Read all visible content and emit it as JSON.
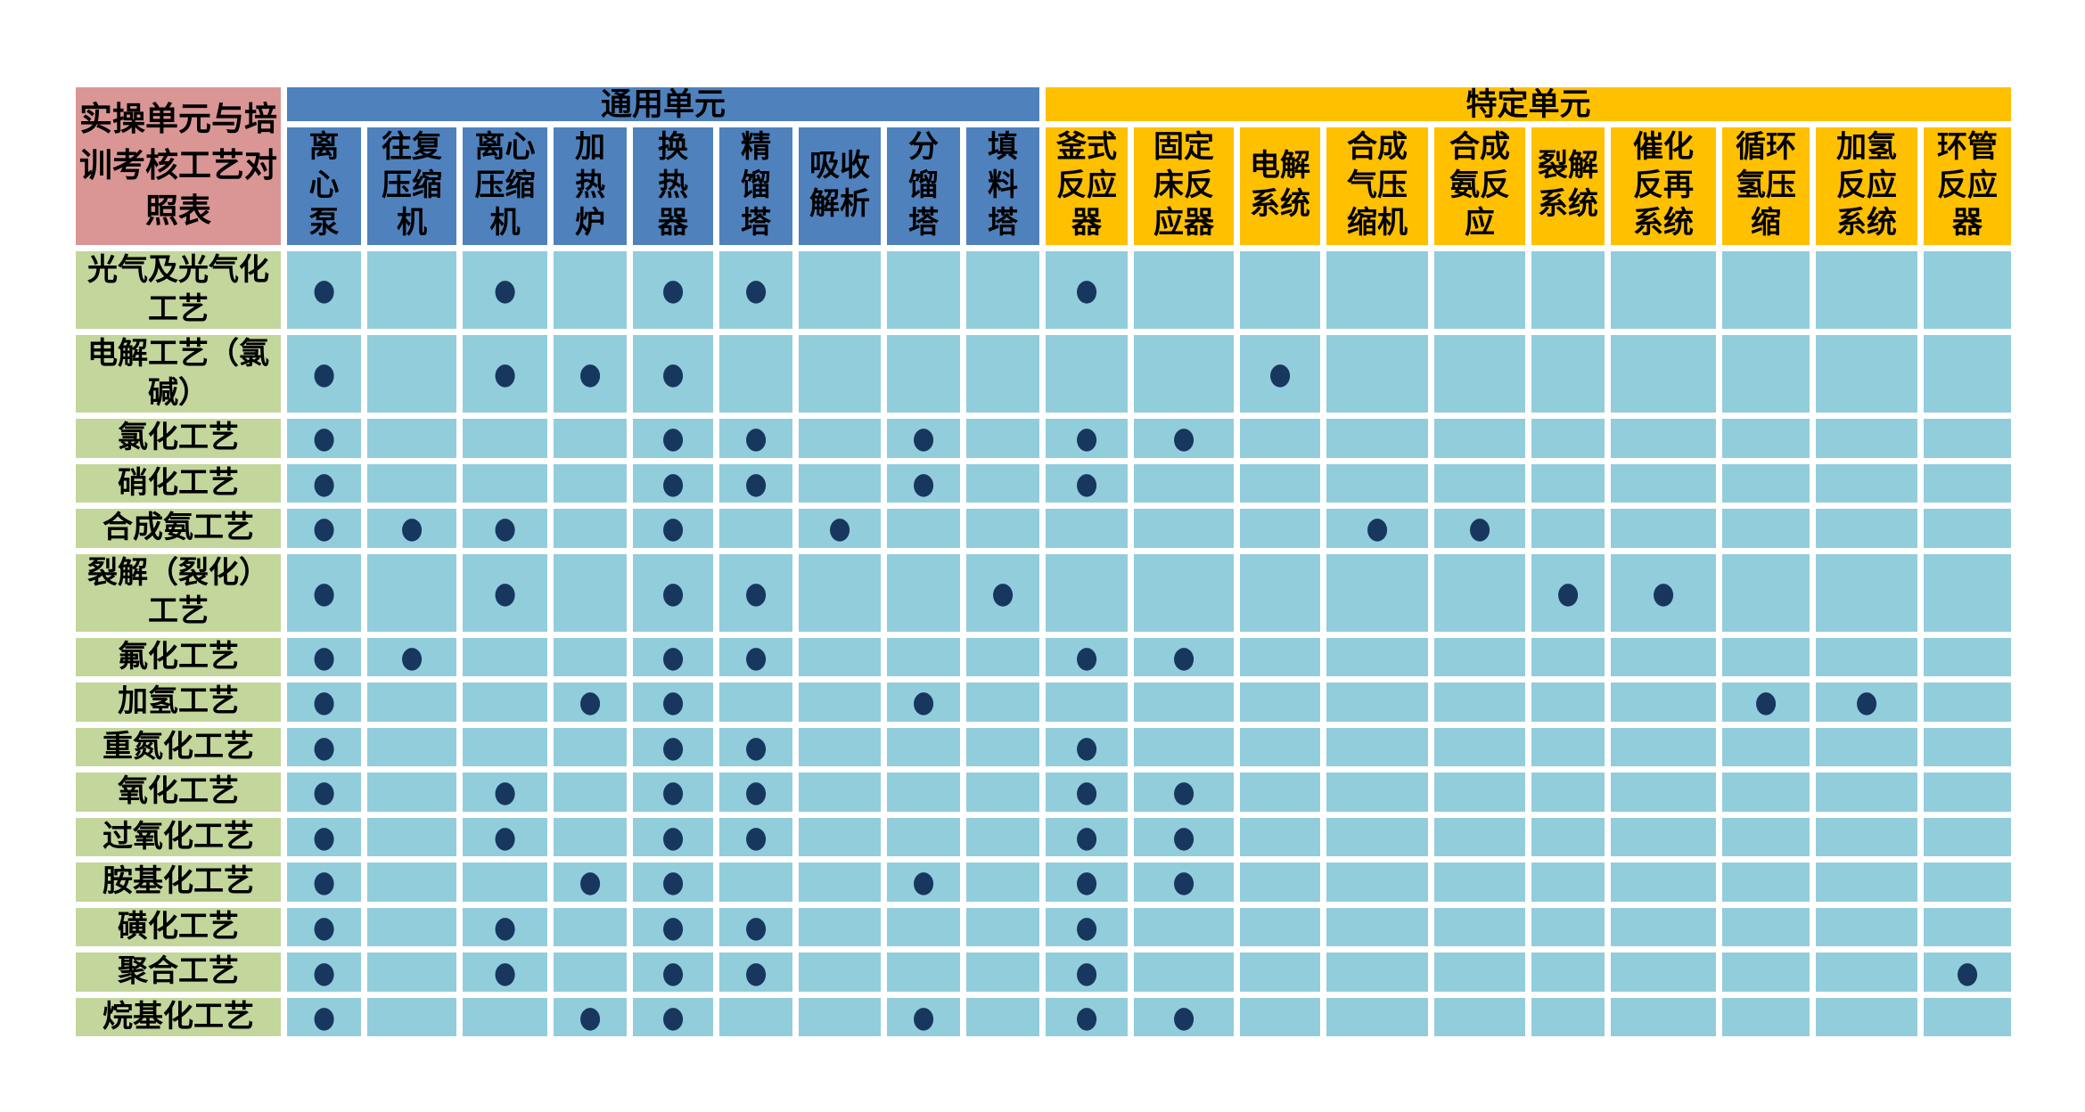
{
  "table": {
    "title": "实操单元与培\n训考核工艺对\n照表",
    "dot_glyph": "●",
    "groups": [
      {
        "id": "general",
        "label": "通用单元",
        "span": 9
      },
      {
        "id": "specific",
        "label": "特定单元",
        "span": 10
      }
    ],
    "columns": [
      {
        "label": "离\n心\n泵",
        "group": "general"
      },
      {
        "label": "往复\n压缩\n机",
        "group": "general"
      },
      {
        "label": "离心\n压缩\n机",
        "group": "general"
      },
      {
        "label": "加\n热\n炉",
        "group": "general"
      },
      {
        "label": "换\n热\n器",
        "group": "general"
      },
      {
        "label": "精\n馏\n塔",
        "group": "general"
      },
      {
        "label": "吸收\n解析",
        "group": "general"
      },
      {
        "label": "分\n馏\n塔",
        "group": "general"
      },
      {
        "label": "填\n料\n塔",
        "group": "general"
      },
      {
        "label": "釜式\n反应\n器",
        "group": "specific"
      },
      {
        "label": "固定\n床反\n应器",
        "group": "specific"
      },
      {
        "label": "电解\n系统",
        "group": "specific"
      },
      {
        "label": "合成\n气压\n缩机",
        "group": "specific"
      },
      {
        "label": "合成\n氨反\n应",
        "group": "specific"
      },
      {
        "label": "裂解\n系统",
        "group": "specific"
      },
      {
        "label": "催化\n反再\n系统",
        "group": "specific"
      },
      {
        "label": "循环\n氢压\n缩",
        "group": "specific"
      },
      {
        "label": "加氢\n反应\n系统",
        "group": "specific"
      },
      {
        "label": "环管\n反应\n器",
        "group": "specific"
      }
    ],
    "rows": [
      {
        "label": "光气及光气化\n工艺",
        "dots": [
          0,
          2,
          4,
          5,
          9
        ]
      },
      {
        "label": "电解工艺（氯\n碱）",
        "dots": [
          0,
          2,
          3,
          4,
          11
        ]
      },
      {
        "label": "氯化工艺",
        "dots": [
          0,
          4,
          5,
          7,
          9,
          10
        ]
      },
      {
        "label": "硝化工艺",
        "dots": [
          0,
          4,
          5,
          7,
          9
        ]
      },
      {
        "label": "合成氨工艺",
        "dots": [
          0,
          1,
          2,
          4,
          6,
          12,
          13
        ]
      },
      {
        "label": "裂解（裂化）\n工艺",
        "dots": [
          0,
          2,
          4,
          5,
          8,
          14,
          15
        ]
      },
      {
        "label": "氟化工艺",
        "dots": [
          0,
          1,
          4,
          5,
          9,
          10
        ]
      },
      {
        "label": "加氢工艺",
        "dots": [
          0,
          3,
          4,
          7,
          16,
          17
        ]
      },
      {
        "label": "重氮化工艺",
        "dots": [
          0,
          4,
          5,
          9
        ]
      },
      {
        "label": "氧化工艺",
        "dots": [
          0,
          2,
          4,
          5,
          9,
          10
        ]
      },
      {
        "label": "过氧化工艺",
        "dots": [
          0,
          2,
          4,
          5,
          9,
          10
        ]
      },
      {
        "label": "胺基化工艺",
        "dots": [
          0,
          3,
          4,
          7,
          9,
          10
        ]
      },
      {
        "label": "磺化工艺",
        "dots": [
          0,
          2,
          4,
          5,
          9
        ]
      },
      {
        "label": "聚合工艺",
        "dots": [
          0,
          2,
          4,
          5,
          9,
          18
        ]
      },
      {
        "label": "烷基化工艺",
        "dots": [
          0,
          3,
          4,
          7,
          9,
          10
        ]
      }
    ],
    "colors": {
      "general_header": "#4f81bd",
      "specific_header": "#ffc000",
      "title_bg": "#d99694",
      "row_label_bg": "#c3d69b",
      "cell_bg": "#92cddc",
      "dot": "#17375e",
      "text": "#000000",
      "grid_gap": "#ffffff"
    }
  }
}
